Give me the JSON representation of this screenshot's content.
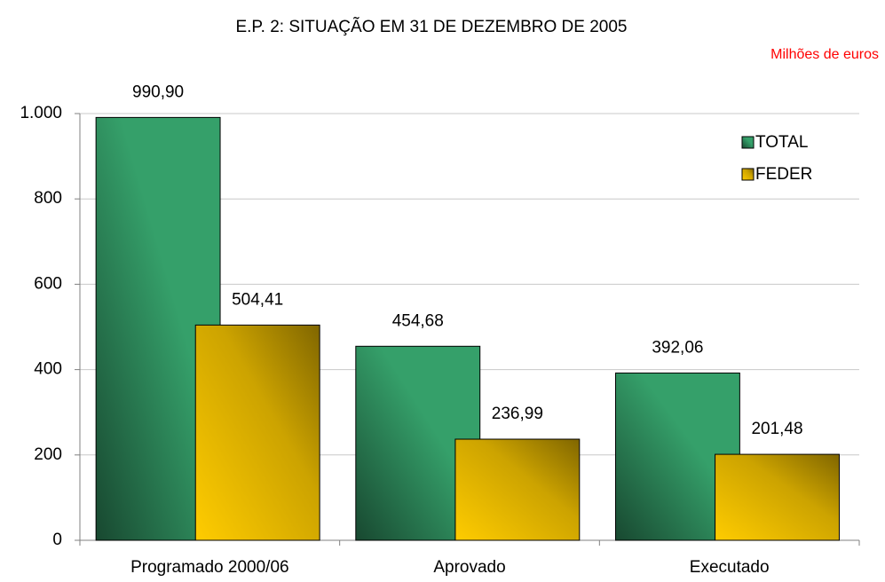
{
  "chart_data": {
    "type": "bar",
    "title": "E.P. 2: SITUAÇÃO EM 31 DE DEZEMBRO DE 2005",
    "subtitle": "Milhões de euros",
    "categories": [
      "Programado 2000/06",
      "Aprovado",
      "Executado"
    ],
    "series": [
      {
        "name": "TOTAL",
        "color": "#35a06a",
        "values": [
          990.9,
          454.68,
          392.06
        ],
        "value_labels": [
          "990,90",
          "454,68",
          "392,06"
        ]
      },
      {
        "name": "FEDER",
        "color": "#ffcc00",
        "values": [
          504.41,
          236.99,
          201.48
        ],
        "value_labels": [
          "504,41",
          "236,99",
          "201,48"
        ]
      }
    ],
    "ylim": [
      0,
      1000
    ],
    "yticks": [
      0,
      200,
      400,
      600,
      800,
      {
        "value": 1000,
        "label": "1.000"
      }
    ],
    "grid": true,
    "legend": "upper right"
  }
}
